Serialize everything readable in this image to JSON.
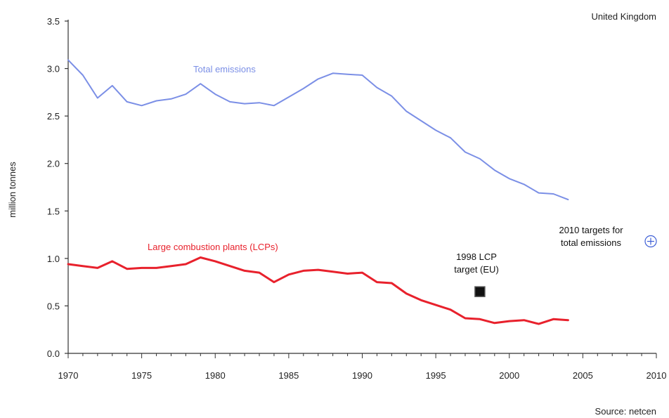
{
  "chart_data": {
    "type": "line",
    "title": "United Kingdom",
    "ylabel": "million tonnes",
    "xlabel": "",
    "source": "Source: netcen",
    "xlim": [
      1970,
      2010
    ],
    "ylim": [
      0,
      3.5
    ],
    "x_ticks": [
      "1970",
      "1975",
      "1980",
      "1985",
      "1990",
      "1995",
      "2000",
      "2005",
      "2010"
    ],
    "y_ticks": [
      "0.0",
      "0.5",
      "1.0",
      "1.5",
      "2.0",
      "2.5",
      "3.0",
      "3.5"
    ],
    "grid": false,
    "x": [
      1970,
      1971,
      1972,
      1973,
      1974,
      1975,
      1976,
      1977,
      1978,
      1979,
      1980,
      1981,
      1982,
      1983,
      1984,
      1985,
      1986,
      1987,
      1988,
      1989,
      1990,
      1991,
      1992,
      1993,
      1994,
      1995,
      1996,
      1997,
      1998,
      1999,
      2000,
      2001,
      2002,
      2003,
      2004
    ],
    "series": [
      {
        "name": "Total emissions",
        "color": "#7b8fe6",
        "values": [
          3.09,
          2.93,
          2.69,
          2.82,
          2.65,
          2.61,
          2.66,
          2.68,
          2.73,
          2.84,
          2.73,
          2.65,
          2.63,
          2.64,
          2.61,
          2.7,
          2.79,
          2.89,
          2.95,
          2.94,
          2.93,
          2.8,
          2.71,
          2.55,
          2.45,
          2.35,
          2.27,
          2.12,
          2.05,
          1.93,
          1.84,
          1.78,
          1.69,
          1.68,
          1.62
        ]
      },
      {
        "name": "Large combustion plants (LCPs)",
        "color": "#e8212c",
        "values": [
          0.94,
          0.92,
          0.9,
          0.97,
          0.89,
          0.9,
          0.9,
          0.92,
          0.94,
          1.01,
          0.97,
          0.92,
          0.87,
          0.85,
          0.75,
          0.83,
          0.87,
          0.88,
          0.86,
          0.84,
          0.85,
          0.75,
          0.74,
          0.63,
          0.56,
          0.51,
          0.46,
          0.37,
          0.36,
          0.32,
          0.34,
          0.35,
          0.31,
          0.36,
          0.35
        ]
      }
    ],
    "markers": [
      {
        "label_lines": [
          "1998 LCP",
          "target (EU)"
        ],
        "x": 1998,
        "y": 0.65,
        "shape": "square",
        "color": "#111111"
      },
      {
        "label_lines": [
          "2010 targets for",
          "total emissions"
        ],
        "x": 2010,
        "y": 1.18,
        "shape": "circle-plus",
        "color": "#3d5fd6"
      }
    ]
  }
}
